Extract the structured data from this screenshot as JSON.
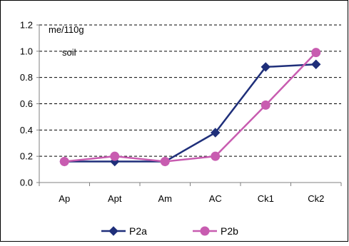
{
  "chart_data": {
    "type": "line",
    "title": "",
    "xlabel": "",
    "ylabel": "",
    "unit_label_lines": [
      "me/110g",
      "soil"
    ],
    "categories": [
      "Ap",
      "Apt",
      "Am",
      "AC",
      "Ck1",
      "Ck2"
    ],
    "ylim": [
      0,
      1.2
    ],
    "yticks": [
      0,
      0.2,
      0.4,
      0.6,
      0.8,
      1.0,
      1.2
    ],
    "ytick_labels": [
      "0.0",
      "0.2",
      "0.4",
      "0.6",
      "0.8",
      "1.0",
      "1.2"
    ],
    "grid": "horizontal dashed",
    "legend_position": "bottom",
    "series": [
      {
        "name": "P2a",
        "marker": "diamond",
        "color": "#1F2F7A",
        "values": [
          0.16,
          0.16,
          0.16,
          0.38,
          0.88,
          0.9
        ]
      },
      {
        "name": "P2b",
        "marker": "circle",
        "color": "#C85CB0",
        "values": [
          0.16,
          0.2,
          0.16,
          0.2,
          0.59,
          0.99
        ]
      }
    ]
  }
}
